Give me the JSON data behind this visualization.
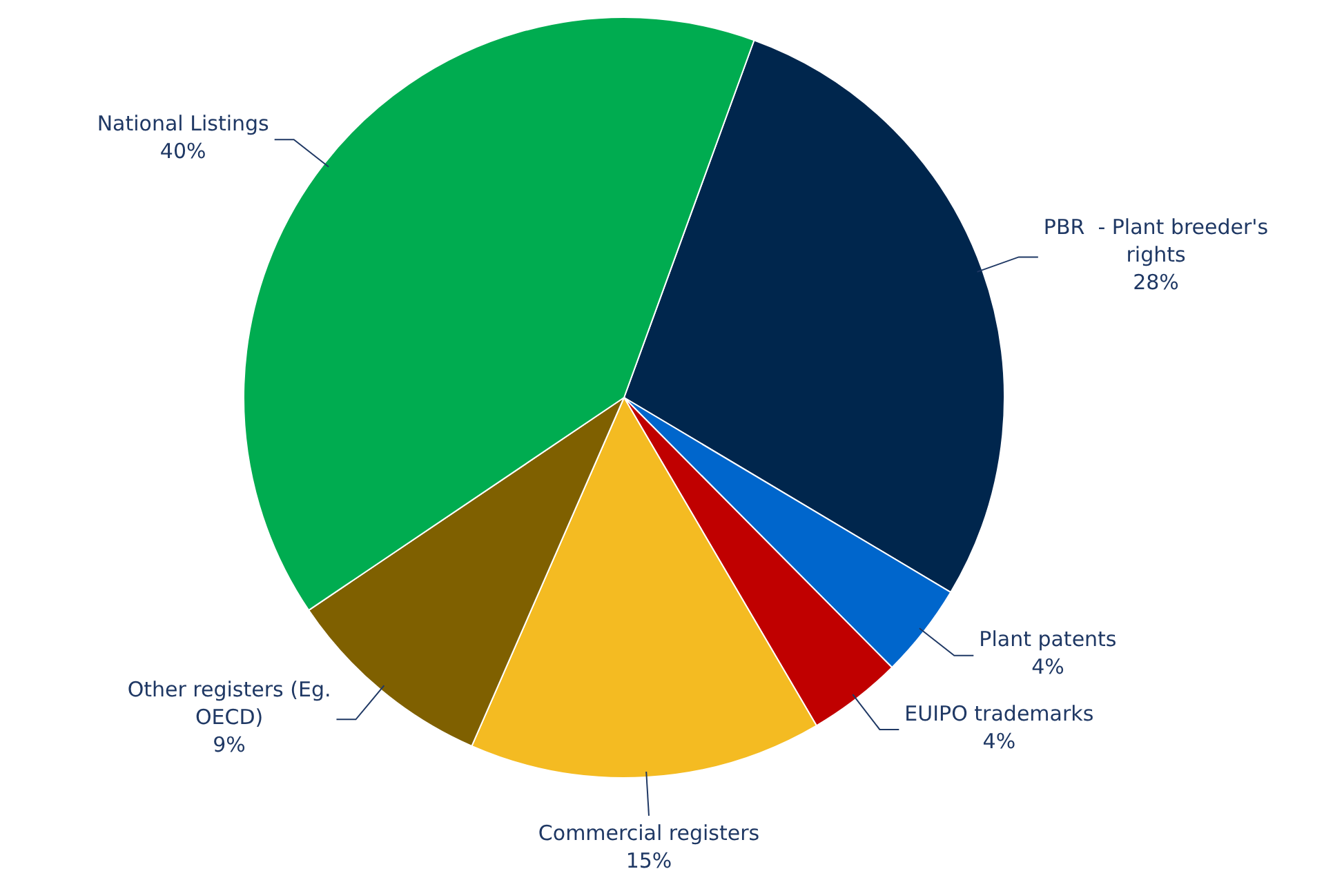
{
  "chart_data": {
    "type": "pie",
    "categories": [
      "PBR  - Plant breeder's rights",
      "Plant patents",
      "EUIPO trademarks",
      "Commercial registers",
      "Other registers (Eg. OECD)",
      "National Listings"
    ],
    "values": [
      28,
      4,
      4,
      15,
      9,
      40
    ],
    "value_labels": [
      "28%",
      "4%",
      "4%",
      "15%",
      "9%",
      "40%"
    ],
    "colors": [
      "#00264d",
      "#0066cc",
      "#c00000",
      "#f4bb22",
      "#7f6000",
      "#00ac50"
    ],
    "legend": false
  }
}
